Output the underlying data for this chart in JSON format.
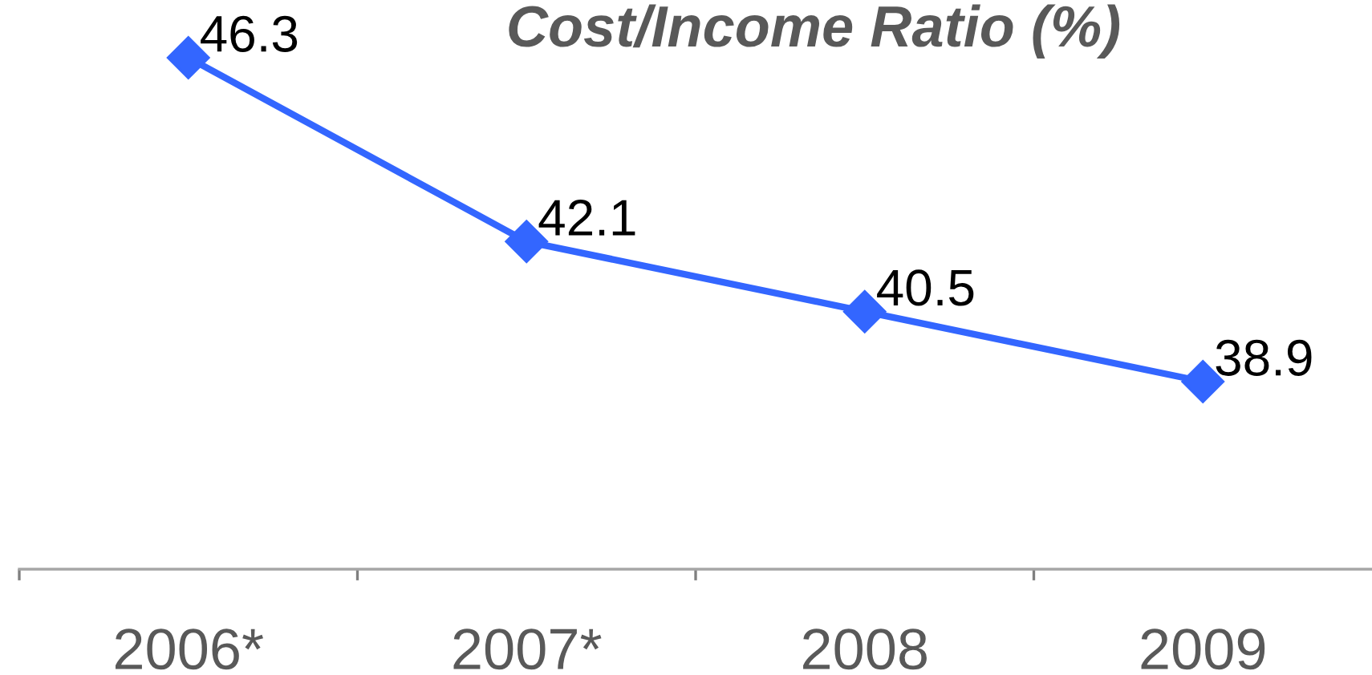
{
  "chart_data": {
    "type": "line",
    "title": "Cost/Income Ratio (%)",
    "categories": [
      "2006*",
      "2007*",
      "2008",
      "2009"
    ],
    "series": [
      {
        "color": "#3366ff",
        "values": [
          46.3,
          42.1,
          40.5,
          38.9
        ]
      }
    ],
    "data_labels": true,
    "marker": "diamond",
    "line_style": "solid",
    "tick_labels": "x"
  }
}
